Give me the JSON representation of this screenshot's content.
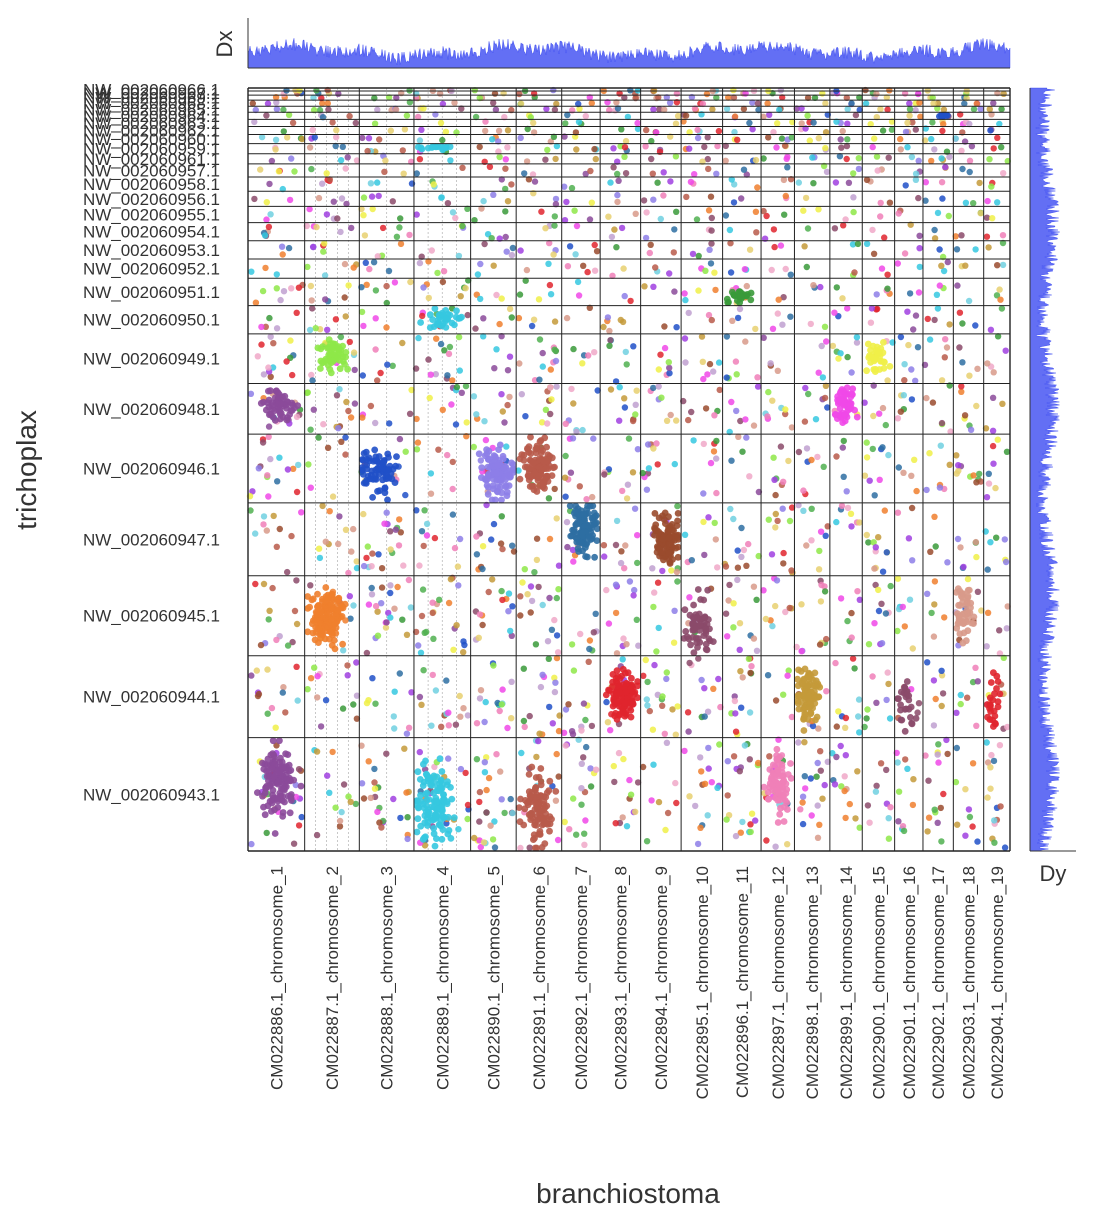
{
  "chart_data": {
    "type": "scatter",
    "description_kind": "oxford dot plot (synteny) with marginal density tracks",
    "xlabel": "branchiostoma",
    "ylabel": "trichoplax",
    "x_margin_label": "Dx",
    "y_margin_label": "Dy",
    "x_categories": [
      "CM022886.1_chromosome_1",
      "CM022887.1_chromosome_2",
      "CM022888.1_chromosome_3",
      "CM022889.1_chromosome_4",
      "CM022890.1_chromosome_5",
      "CM022891.1_chromosome_6",
      "CM022892.1_chromosome_7",
      "CM022893.1_chromosome_8",
      "CM022894.1_chromosome_9",
      "CM022895.1_chromosome_10",
      "CM022896.1_chromosome_11",
      "CM022897.1_chromosome_12",
      "CM022898.1_chromosome_13",
      "CM022899.1_chromosome_14",
      "CM022900.1_chromosome_15",
      "CM022901.1_chromosome_16",
      "CM022902.1_chromosome_17",
      "CM022903.1_chromosome_18",
      "CM022904.1_chromosome_19"
    ],
    "x_relative_sizes": [
      56,
      54,
      54,
      56,
      45,
      45,
      38,
      40,
      40,
      41,
      38,
      33,
      35,
      32,
      32,
      28,
      30,
      30,
      26
    ],
    "y_categories": [
      "NW_002060943.1",
      "NW_002060944.1",
      "NW_002060945.1",
      "NW_002060947.1",
      "NW_002060946.1",
      "NW_002060948.1",
      "NW_002060949.1",
      "NW_002060950.1",
      "NW_002060951.1",
      "NW_002060952.1",
      "NW_002060953.1",
      "NW_002060954.1",
      "NW_002060955.1",
      "NW_002060956.1",
      "NW_002060958.1",
      "NW_002060957.1",
      "NW_002060961.1",
      "NW_002060959.1",
      "NW_002060960.1",
      "NW_002060962.1",
      "NW_002060963.1",
      "NW_002060964.1",
      "NW_002060965.1",
      "NW_002060968.1",
      "NW_002060969.1",
      "NW_002060967.1",
      "NW_002060966.1"
    ],
    "y_relative_sizes": [
      112,
      81,
      79,
      72,
      68,
      50,
      49,
      28,
      27,
      19,
      18,
      18,
      16,
      15,
      14,
      13,
      10,
      10,
      9,
      8,
      7,
      7,
      6,
      6,
      5,
      4,
      3
    ],
    "clusters": [
      {
        "x": "CM022898.1_chromosome_13",
        "y": "NW_002060944.1",
        "color": "#c49a3a",
        "density": "high"
      },
      {
        "x": "CM022893.1_chromosome_8",
        "y": "NW_002060944.1",
        "color": "#e0252e",
        "density": "high"
      },
      {
        "x": "CM022892.1_chromosome_7",
        "y": "NW_002060947.1",
        "color": "#2e6ea2",
        "density": "high"
      },
      {
        "x": "CM022894.1_chromosome_9",
        "y": "NW_002060947.1",
        "color": "#9a4b2e",
        "density": "high"
      },
      {
        "x": "CM022899.1_chromosome_14",
        "y": "NW_002060948.1",
        "color": "#f048e8",
        "density": "high"
      },
      {
        "x": "CM022887.1_chromosome_2",
        "y": "NW_002060945.1",
        "color": "#f07f2e",
        "density": "high"
      },
      {
        "x": "CM022890.1_chromosome_5",
        "y": "NW_002060946.1",
        "color": "#8d7ee8",
        "density": "high"
      },
      {
        "x": "CM022891.1_chromosome_6",
        "y": "NW_002060946.1",
        "color": "#b85a4a",
        "density": "high"
      },
      {
        "x": "CM022895.1_chromosome_10",
        "y": "NW_002060945.1",
        "color": "#8b4a6a",
        "density": "medium"
      },
      {
        "x": "CM022886.1_chromosome_1",
        "y": "NW_002060948.1",
        "color": "#8b4a9a",
        "density": "medium"
      },
      {
        "x": "CM022886.1_chromosome_1",
        "y": "NW_002060943.1",
        "color": "#8b4a9a",
        "density": "medium"
      },
      {
        "x": "CM022887.1_chromosome_2",
        "y": "NW_002060949.1",
        "color": "#8ee848",
        "density": "medium"
      },
      {
        "x": "CM022889.1_chromosome_4",
        "y": "NW_002060950.1",
        "color": "#35c8e0",
        "density": "medium"
      },
      {
        "x": "CM022896.1_chromosome_11",
        "y": "NW_002060951.1",
        "color": "#3a9a3a",
        "density": "medium"
      },
      {
        "x": "CM022900.1_chromosome_15",
        "y": "NW_002060949.1",
        "color": "#f0f048",
        "density": "medium"
      },
      {
        "x": "CM022903.1_chromosome_18",
        "y": "NW_002060945.1",
        "color": "#d89a8a",
        "density": "medium"
      },
      {
        "x": "CM022889.1_chromosome_4",
        "y": "NW_002060943.1",
        "color": "#35c8e0",
        "density": "medium"
      },
      {
        "x": "CM022888.1_chromosome_3",
        "y": "NW_002060946.1",
        "color": "#2050c8",
        "density": "medium"
      },
      {
        "x": "CM022897.1_chromosome_12",
        "y": "NW_002060943.1",
        "color": "#f07fb8",
        "density": "medium"
      },
      {
        "x": "CM022902.1_chromosome_17",
        "y": "NW_002060964.1",
        "color": "#2050c8",
        "density": "medium"
      },
      {
        "x": "CM022901.1_chromosome_16",
        "y": "NW_002060944.1",
        "color": "#8b4a6a",
        "density": "low"
      },
      {
        "x": "CM022904.1_chromosome_19",
        "y": "NW_002060944.1",
        "color": "#e0252e",
        "density": "low"
      },
      {
        "x": "CM022889.1_chromosome_4",
        "y": "NW_002060959.1",
        "color": "#35c8e0",
        "density": "medium"
      },
      {
        "x": "CM022891.1_chromosome_6",
        "y": "NW_002060943.1",
        "color": "#b85a4a",
        "density": "medium"
      }
    ],
    "palette": [
      "#8b4a9a",
      "#f07f2e",
      "#e0252e",
      "#2e6ea2",
      "#9a4b2e",
      "#c49a3a",
      "#3a9a3a",
      "#35c8e0",
      "#f048e8",
      "#8ee848",
      "#f0f048",
      "#2050c8",
      "#8d7ee8",
      "#d89a8a",
      "#f0a8c8",
      "#b85a4a",
      "#c0a0d0",
      "#8b4a6a",
      "#e8d070",
      "#70d0e0",
      "#f07fb8",
      "#50b050",
      "#a040e0"
    ],
    "density_track_color": "#2f3ff0",
    "grid": "panel borders only",
    "legend": "none"
  }
}
